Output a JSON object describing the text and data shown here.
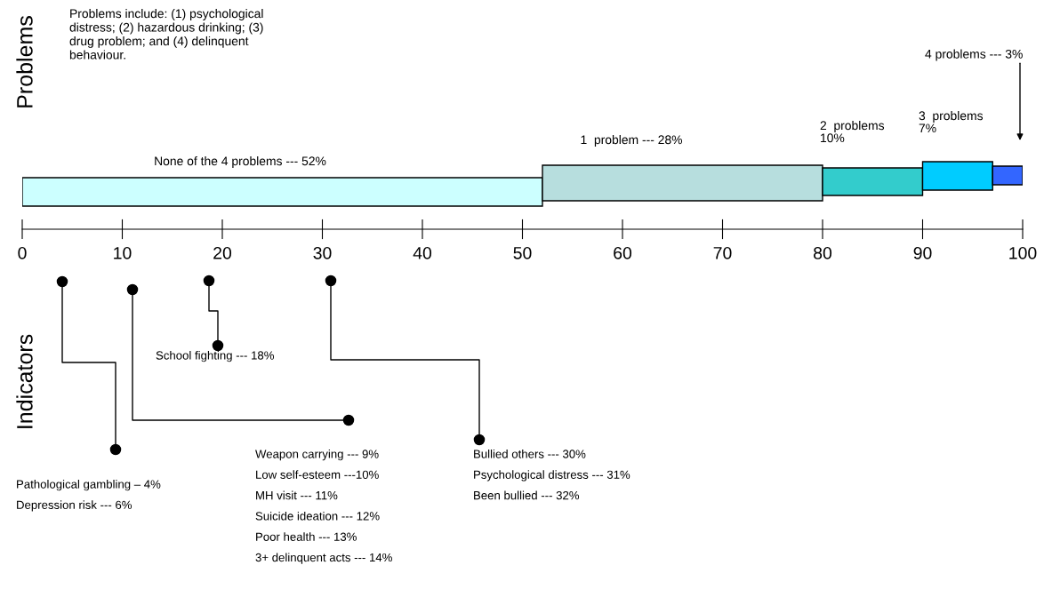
{
  "chart_data": {
    "type": "bar",
    "orientation": "horizontal",
    "stacked": true,
    "categories": [
      null
    ],
    "series": [
      {
        "color": "#ccffff",
        "values": [
          52
        ]
      },
      {
        "color": "#b7dede",
        "values": [
          28
        ]
      },
      {
        "color": "#33cccc",
        "values": [
          10
        ]
      },
      {
        "color": "#00ccff",
        "values": [
          7
        ]
      },
      {
        "color": "#3366ff",
        "values": [
          3
        ]
      }
    ],
    "xlim": [
      0,
      100
    ],
    "xticks": [
      0,
      10,
      20,
      30,
      40,
      50,
      60,
      70,
      80,
      90,
      100
    ],
    "ylabel": "Problems",
    "tick_labels": "x",
    "grid": false,
    "legend": false,
    "annotations": [
      "Problems include: (1) psychological\ndistress; (2) hazardous drinking; (3)\ndrug problem; and (4) delinquent\nbehaviour.",
      "Indicators",
      "None of the 4 problems --- 52%",
      "1  problem --- 28%",
      "2  problems\n10%",
      "3  problems\n7%",
      "4 problems --- 3%",
      "Pathological gambling – 4%\nDepression risk --- 6%",
      "Weapon carrying --- 9%\nLow self-esteem ---10%\nMH visit --- 11%\nSuicide ideation --- 12%\nPoor health --- 13%\n3+ delinquent acts --- 14%",
      "School fighting --- 18%",
      "Bullied others --- 30%\nPsychological distress --- 31%\nBeen bullied --- 32%"
    ]
  }
}
